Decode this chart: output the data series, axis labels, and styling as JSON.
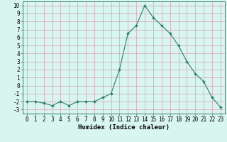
{
  "x": [
    0,
    1,
    2,
    3,
    4,
    5,
    6,
    7,
    8,
    9,
    10,
    11,
    12,
    13,
    14,
    15,
    16,
    17,
    18,
    19,
    20,
    21,
    22,
    23
  ],
  "y": [
    -2,
    -2,
    -2.2,
    -2.5,
    -2,
    -2.5,
    -2,
    -2,
    -2,
    -1.5,
    -1,
    2,
    6.5,
    7.5,
    10,
    8.5,
    7.5,
    6.5,
    5,
    3,
    1.5,
    0.5,
    -1.5,
    -2.7
  ],
  "line_color": "#2e7d6e",
  "marker": "D",
  "marker_size": 2,
  "bg_color": "#d8f5f0",
  "grid_color": "#c0b8c8",
  "xlabel": "Humidex (Indice chaleur)",
  "xlim": [
    -0.5,
    23.5
  ],
  "ylim": [
    -3.5,
    10.5
  ],
  "yticks": [
    -3,
    -2,
    -1,
    0,
    1,
    2,
    3,
    4,
    5,
    6,
    7,
    8,
    9,
    10
  ],
  "xticks": [
    0,
    1,
    2,
    3,
    4,
    5,
    6,
    7,
    8,
    9,
    10,
    11,
    12,
    13,
    14,
    15,
    16,
    17,
    18,
    19,
    20,
    21,
    22,
    23
  ],
  "tick_fontsize": 5.5,
  "xlabel_fontsize": 6.5
}
